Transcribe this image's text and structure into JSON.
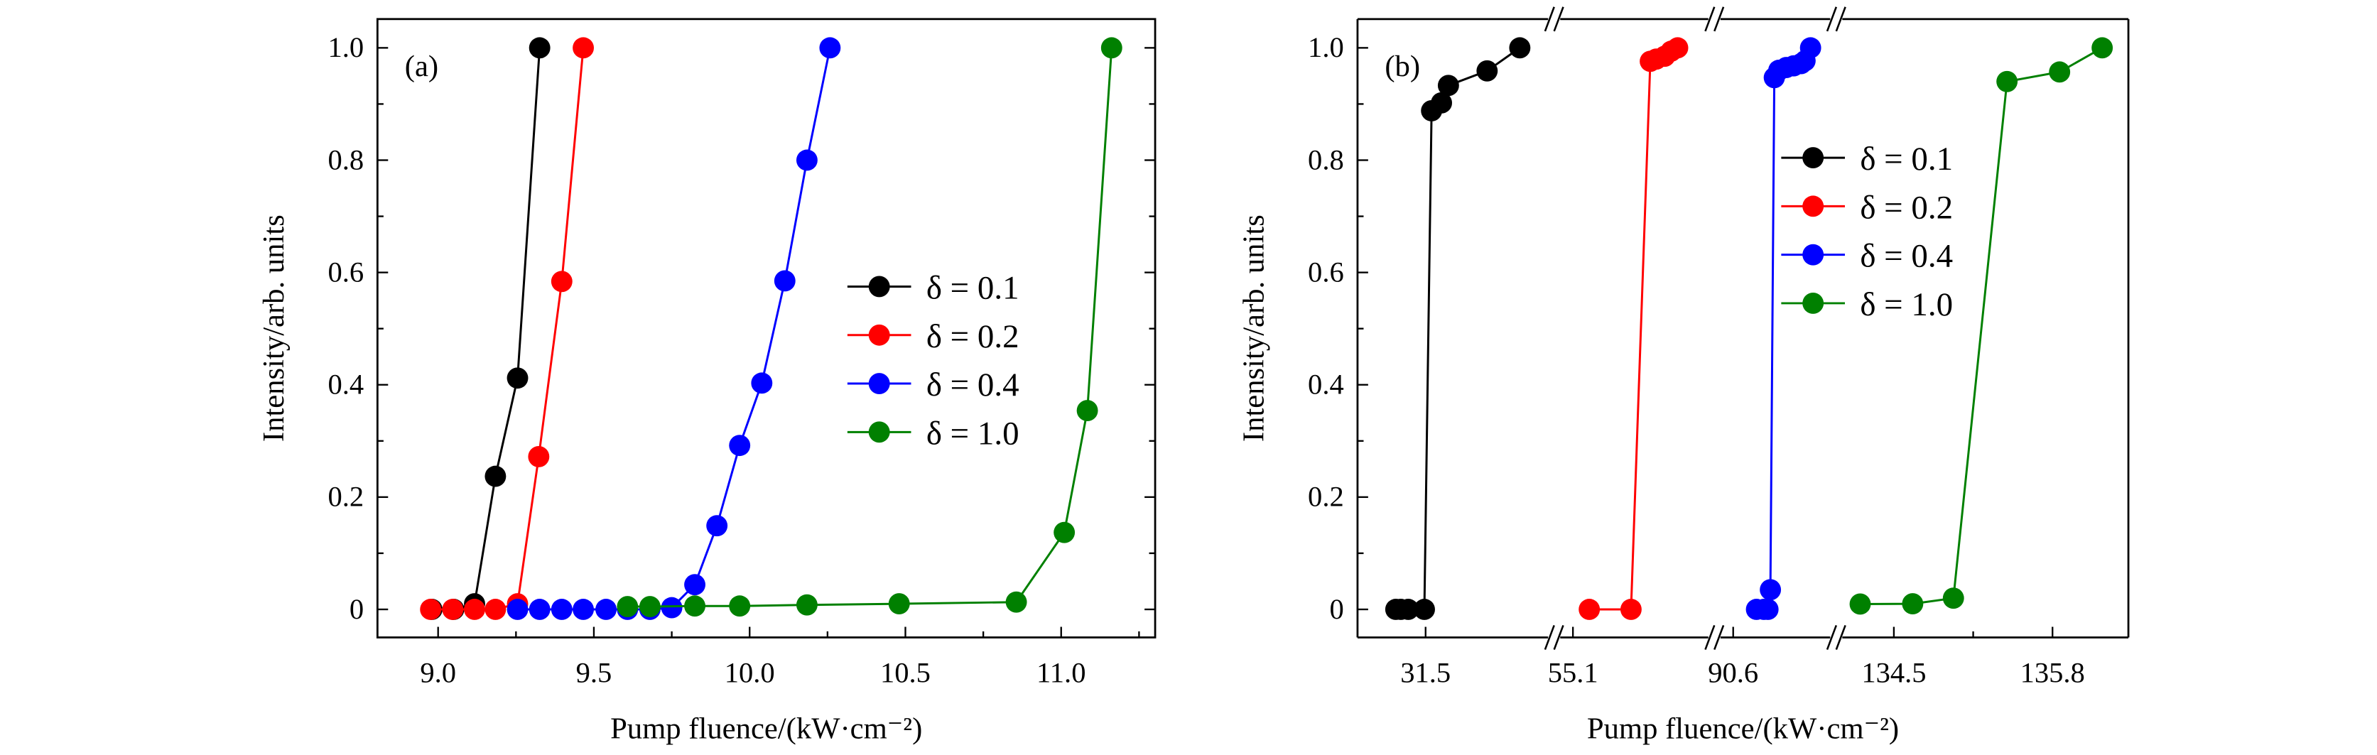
{
  "chart_data": [
    {
      "type": "line",
      "panel_label": "(a)",
      "xlabel": "Pump fluence/(kW·cm⁻²)",
      "ylabel": "Intensity/arb. units",
      "xlim": [
        8.79,
        11.29
      ],
      "ylim": [
        -0.05,
        1.05
      ],
      "xticks": [
        9.0,
        9.5,
        10.0,
        10.5,
        11.0
      ],
      "xtick_labels": [
        "9.0",
        "9.5",
        "10.0",
        "10.5",
        "11.0"
      ],
      "yticks": [
        0,
        0.2,
        0.4,
        0.6,
        0.8,
        1.0
      ],
      "ytick_labels": [
        "0",
        "0.2",
        "0.4",
        "0.6",
        "0.8",
        "1.0"
      ],
      "grid": false,
      "legend_position": "center-right",
      "series": [
        {
          "name": "δ = 0.1",
          "color": "#000000",
          "x": [
            8.98,
            9.05,
            9.117,
            9.184,
            9.255,
            9.326
          ],
          "y": [
            0.0,
            0.0,
            0.01,
            0.237,
            0.412,
            1.0
          ]
        },
        {
          "name": "δ = 0.2",
          "color": "#ff0000",
          "x": [
            8.976,
            9.047,
            9.117,
            9.184,
            9.255,
            9.323,
            9.397,
            9.466
          ],
          "y": [
            0.0,
            0.0,
            0.0,
            0.0,
            0.01,
            0.272,
            0.584,
            1.0
          ]
        },
        {
          "name": "δ = 0.4",
          "color": "#0000ff",
          "x": [
            9.255,
            9.326,
            9.397,
            9.466,
            9.539,
            9.608,
            9.68,
            9.75,
            9.824,
            9.895,
            9.968,
            10.039,
            10.113,
            10.184,
            10.258
          ],
          "y": [
            0.0,
            0.0,
            0.0,
            0.0,
            0.0,
            0.0,
            0.0,
            0.003,
            0.044,
            0.149,
            0.292,
            0.403,
            0.585,
            0.8,
            1.0
          ]
        },
        {
          "name": "δ = 1.0",
          "color": "#008000",
          "x": [
            9.608,
            9.68,
            9.824,
            9.968,
            10.184,
            10.48,
            10.856,
            11.01,
            11.084,
            11.162
          ],
          "y": [
            0.005,
            0.005,
            0.006,
            0.006,
            0.008,
            0.01,
            0.013,
            0.137,
            0.354,
            1.0
          ]
        }
      ]
    },
    {
      "type": "line",
      "panel_label": "(b)",
      "xlabel": "Pump fluence/(kW·cm⁻²)",
      "ylabel": "Intensity/arb. units",
      "x_axis_broken": true,
      "ylim": [
        -0.05,
        1.05
      ],
      "xticks": [
        31.5,
        55.1,
        90.6,
        134.5,
        135.8
      ],
      "xtick_labels": [
        "31.5",
        "55.1",
        "90.6",
        "134.5",
        "135.8"
      ],
      "yticks": [
        0,
        0.2,
        0.4,
        0.6,
        0.8,
        1.0
      ],
      "ytick_labels": [
        "0",
        "0.2",
        "0.4",
        "0.6",
        "0.8",
        "1.0"
      ],
      "grid": false,
      "legend_position": "center-right",
      "series": [
        {
          "name": "δ = 0.1",
          "color": "#000000",
          "x": [
            31.256,
            31.297,
            31.358,
            31.49,
            31.549,
            31.63,
            31.687,
            32.004,
            32.272
          ],
          "y": [
            0.0,
            0.0,
            0.0,
            0.0,
            0.888,
            0.902,
            0.933,
            0.959,
            1.0
          ]
        },
        {
          "name": "δ = 0.2",
          "color": "#ff0000",
          "x": [
            55.234,
            55.576,
            55.734,
            55.783,
            55.852,
            55.905,
            55.958
          ],
          "y": [
            0.0,
            0.0,
            0.976,
            0.98,
            0.985,
            0.994,
            1.0
          ]
        },
        {
          "name": "δ = 0.4",
          "color": "#0000ff",
          "x": [
            90.791,
            90.852,
            90.885,
            90.905,
            90.937,
            90.974,
            91.035,
            91.096,
            91.157,
            91.189,
            91.234
          ],
          "y": [
            0.0,
            0.0,
            0.0,
            0.035,
            0.947,
            0.96,
            0.965,
            0.968,
            0.972,
            0.977,
            1.0
          ]
        },
        {
          "name": "δ = 1.0",
          "color": "#008000",
          "x": [
            134.224,
            134.654,
            134.988,
            135.427,
            135.858,
            136.207
          ],
          "y": [
            0.0095,
            0.01,
            0.02,
            0.94,
            0.957,
            1.0
          ]
        }
      ]
    }
  ]
}
